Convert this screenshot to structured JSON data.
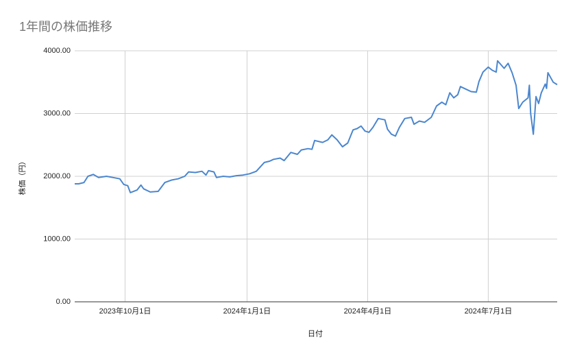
{
  "chart_data": {
    "type": "line",
    "title": "1年間の株価推移",
    "x_label": "日付",
    "y_label": "株価（円）",
    "x": [
      "2023-08-24",
      "2023-08-27",
      "2023-08-31",
      "2023-09-03",
      "2023-09-07",
      "2023-09-11",
      "2023-09-14",
      "2023-09-17",
      "2023-09-22",
      "2023-09-27",
      "2023-09-30",
      "2023-10-03",
      "2023-10-05",
      "2023-10-10",
      "2023-10-13",
      "2023-10-15",
      "2023-10-20",
      "2023-10-26",
      "2023-10-31",
      "2023-11-05",
      "2023-11-10",
      "2023-11-15",
      "2023-11-18",
      "2023-11-23",
      "2023-11-28",
      "2023-12-01",
      "2023-12-03",
      "2023-12-07",
      "2023-12-09",
      "2023-12-14",
      "2023-12-19",
      "2023-12-24",
      "2023-12-29",
      "2024-01-03",
      "2024-01-08",
      "2024-01-11",
      "2024-01-14",
      "2024-01-18",
      "2024-01-21",
      "2024-01-26",
      "2024-01-29",
      "2024-02-03",
      "2024-02-08",
      "2024-02-11",
      "2024-02-16",
      "2024-02-19",
      "2024-02-21",
      "2024-02-27",
      "2024-03-02",
      "2024-03-05",
      "2024-03-09",
      "2024-03-13",
      "2024-03-17",
      "2024-03-21",
      "2024-03-24",
      "2024-03-27",
      "2024-03-30",
      "2024-04-02",
      "2024-04-05",
      "2024-04-09",
      "2024-04-14",
      "2024-04-16",
      "2024-04-19",
      "2024-04-22",
      "2024-04-25",
      "2024-04-29",
      "2024-05-04",
      "2024-05-06",
      "2024-05-10",
      "2024-05-14",
      "2024-05-19",
      "2024-05-23",
      "2024-05-27",
      "2024-05-30",
      "2024-06-02",
      "2024-06-05",
      "2024-06-08",
      "2024-06-10",
      "2024-06-14",
      "2024-06-18",
      "2024-06-22",
      "2024-06-24",
      "2024-06-27",
      "2024-07-01",
      "2024-07-04",
      "2024-07-07",
      "2024-07-08",
      "2024-07-13",
      "2024-07-16",
      "2024-07-19",
      "2024-07-22",
      "2024-07-24",
      "2024-07-27",
      "2024-07-31",
      "2024-08-01",
      "2024-08-02",
      "2024-08-04",
      "2024-08-06",
      "2024-08-08",
      "2024-08-10",
      "2024-08-13",
      "2024-08-14",
      "2024-08-15",
      "2024-08-19",
      "2024-08-22"
    ],
    "values": [
      1880,
      1880,
      1900,
      2000,
      2030,
      1980,
      1990,
      2000,
      1980,
      1960,
      1870,
      1850,
      1740,
      1780,
      1860,
      1800,
      1750,
      1760,
      1900,
      1940,
      1960,
      2000,
      2070,
      2060,
      2080,
      2020,
      2090,
      2070,
      1980,
      2000,
      1990,
      2010,
      2020,
      2040,
      2080,
      2150,
      2220,
      2240,
      2270,
      2290,
      2250,
      2380,
      2350,
      2420,
      2440,
      2430,
      2570,
      2540,
      2580,
      2660,
      2580,
      2470,
      2530,
      2740,
      2760,
      2800,
      2720,
      2700,
      2780,
      2920,
      2900,
      2750,
      2670,
      2640,
      2780,
      2920,
      2940,
      2830,
      2880,
      2860,
      2940,
      3120,
      3180,
      3140,
      3330,
      3250,
      3300,
      3430,
      3390,
      3350,
      3340,
      3510,
      3660,
      3740,
      3690,
      3660,
      3840,
      3720,
      3800,
      3650,
      3450,
      3080,
      3180,
      3250,
      3450,
      3000,
      2670,
      3270,
      3160,
      3330,
      3470,
      3400,
      3650,
      3500,
      3460
    ],
    "color": "#4a86cf",
    "xlim": [
      "2023-08-24",
      "2024-08-22"
    ],
    "xticks": [
      {
        "value": "2023-10-01",
        "label": "2023年10月1日"
      },
      {
        "value": "2024-01-01",
        "label": "2024年1月1日"
      },
      {
        "value": "2024-04-01",
        "label": "2024年4月1日"
      },
      {
        "value": "2024-07-01",
        "label": "2024年7月1日"
      }
    ],
    "ylim": [
      0,
      4000
    ],
    "yticks": [
      {
        "value": 0,
        "label": "0.00"
      },
      {
        "value": 1000,
        "label": "1000.00"
      },
      {
        "value": 2000,
        "label": "2000.00"
      },
      {
        "value": 3000,
        "label": "3000.00"
      },
      {
        "value": 4000,
        "label": "4000.00"
      }
    ],
    "grid": true
  }
}
